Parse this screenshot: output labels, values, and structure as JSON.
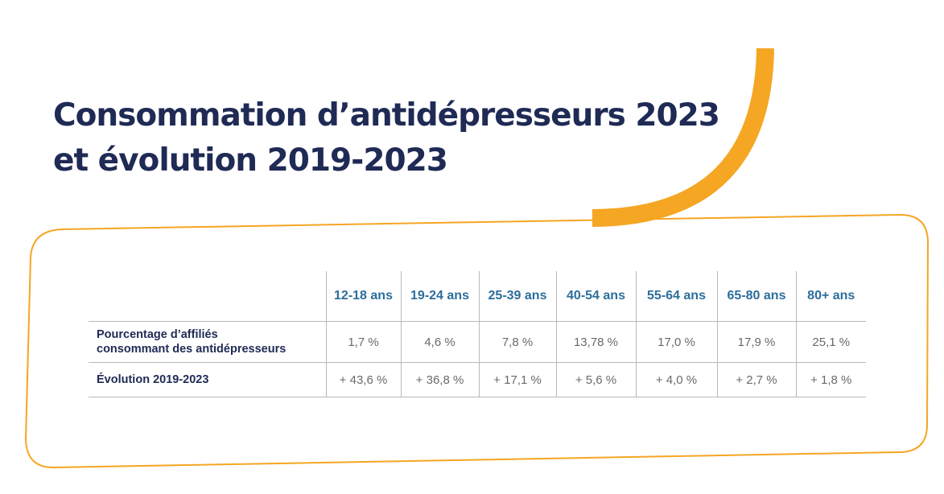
{
  "title": {
    "line1": "Consommation d’antidépresseurs 2023",
    "line2": "et évolution 2019-2023"
  },
  "colors": {
    "accent": "#f5a623",
    "title": "#1f2a55",
    "header_text": "#2c6e9b",
    "cell_text": "#6a6a6a",
    "grid": "#b9b9b9"
  },
  "chart_data": {
    "type": "table",
    "columns": [
      "12-18 ans",
      "19-24 ans",
      "25-39 ans",
      "40-54 ans",
      "55-64 ans",
      "65-80 ans",
      "80+ ans"
    ],
    "rows": [
      {
        "label_lines": [
          "Pourcentage d’affiliés",
          "consommant des antidépresseurs"
        ],
        "values": [
          "1,7 %",
          "4,6 %",
          "7,8 %",
          "13,78 %",
          "17,0 %",
          "17,9 %",
          "25,1 %"
        ]
      },
      {
        "label_lines": [
          "Évolution 2019-2023"
        ],
        "values": [
          "+ 43,6 %",
          "+ 36,8 %",
          "+ 17,1 %",
          "+ 5,6 %",
          "+ 4,0 %",
          "+ 2,7 %",
          "+ 1,8 %"
        ]
      }
    ]
  }
}
